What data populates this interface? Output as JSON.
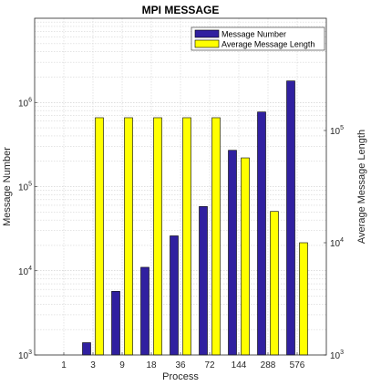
{
  "chart_data": {
    "type": "bar",
    "title": "MPI MESSAGE",
    "xlabel": "Process",
    "ylabel": "Message Number",
    "ylabel_right": "Average Message Length",
    "categories": [
      "1",
      "3",
      "9",
      "18",
      "36",
      "72",
      "144",
      "288",
      "576"
    ],
    "yscale": "log",
    "ylim": [
      1000,
      10000000
    ],
    "yscale_right": "log",
    "ylim_right": [
      1000,
      1000000
    ],
    "yticks_left": [
      {
        "value": 1000,
        "base": "10",
        "exp": "3"
      },
      {
        "value": 10000,
        "base": "10",
        "exp": "4"
      },
      {
        "value": 100000,
        "base": "10",
        "exp": "5"
      },
      {
        "value": 1000000,
        "base": "10",
        "exp": "6"
      }
    ],
    "yticks_right": [
      {
        "value": 1000,
        "base": "10",
        "exp": "3"
      },
      {
        "value": 10000,
        "base": "10",
        "exp": "4"
      },
      {
        "value": 100000,
        "base": "10",
        "exp": "5"
      }
    ],
    "grid": true,
    "legend_position": "top-right",
    "series": [
      {
        "name": "Message Number",
        "axis": "left",
        "color": "#3020a0",
        "values": [
          null,
          1400,
          5700,
          11000,
          26000,
          58000,
          270000,
          770000,
          1800000
        ]
      },
      {
        "name": "Average Message Length",
        "axis": "right",
        "color": "#ffff00",
        "values": [
          null,
          130000,
          130000,
          130000,
          130000,
          130000,
          57000,
          19000,
          10000
        ]
      }
    ]
  }
}
